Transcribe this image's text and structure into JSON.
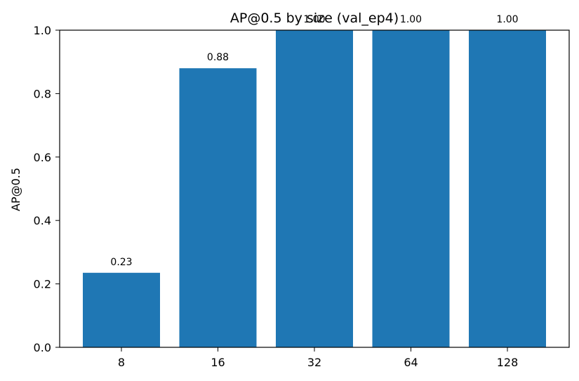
{
  "chart_data": {
    "type": "bar",
    "title": "AP@0.5 by size (val_ep4)",
    "xlabel": "",
    "ylabel": "AP@0.5",
    "categories": [
      "8",
      "16",
      "32",
      "64",
      "128"
    ],
    "values": [
      0.235,
      0.88,
      1.0,
      1.0,
      1.0
    ],
    "data_labels": [
      "0.23",
      "0.88",
      "1.00",
      "1.00",
      "1.00"
    ],
    "ylim": [
      0,
      1.0
    ],
    "yticks": [
      "0.0",
      "0.2",
      "0.4",
      "0.6",
      "0.8",
      "1.0"
    ],
    "ytick_values": [
      0,
      0.2,
      0.4,
      0.6,
      0.8,
      1.0
    ],
    "bar_color": "#1f77b4",
    "grid": false,
    "legend": "none"
  }
}
